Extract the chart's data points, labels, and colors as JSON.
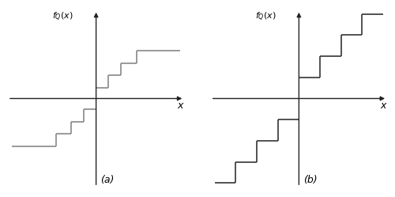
{
  "fig_width": 5.0,
  "fig_height": 2.49,
  "dpi": 100,
  "background_color": "#ffffff",
  "line_color_a": "#888888",
  "line_color_b": "#333333",
  "axis_color": "#222222",
  "label_color": "#000000",
  "subplot_a": {
    "xlim": [
      -2.3,
      2.3
    ],
    "ylim": [
      -2.3,
      2.3
    ],
    "label": "(a)",
    "pos_segs_x": [
      [
        0.0,
        0.32
      ],
      [
        0.32,
        0.32
      ],
      [
        0.32,
        0.65
      ],
      [
        0.65,
        0.65
      ],
      [
        0.65,
        1.05
      ],
      [
        1.05,
        1.05
      ],
      [
        1.05,
        2.2
      ]
    ],
    "pos_segs_y": [
      [
        0.28,
        0.28
      ],
      [
        0.28,
        0.6
      ],
      [
        0.6,
        0.6
      ],
      [
        0.6,
        0.92
      ],
      [
        0.92,
        0.92
      ],
      [
        0.92,
        1.24
      ],
      [
        1.24,
        1.24
      ]
    ]
  },
  "subplot_b": {
    "xlim": [
      -2.3,
      2.3
    ],
    "ylim": [
      -2.3,
      2.3
    ],
    "label": "(b)",
    "pos_segs_x": [
      [
        0.0,
        0.55
      ],
      [
        0.55,
        0.55
      ],
      [
        0.55,
        1.1
      ],
      [
        1.1,
        1.1
      ],
      [
        1.1,
        1.65
      ],
      [
        1.65,
        1.65
      ],
      [
        1.65,
        2.2
      ]
    ],
    "pos_segs_y": [
      [
        0.55,
        0.55
      ],
      [
        0.55,
        1.1
      ],
      [
        1.1,
        1.1
      ],
      [
        1.1,
        1.65
      ],
      [
        1.65,
        1.65
      ],
      [
        1.65,
        2.2
      ],
      [
        2.2,
        2.2
      ]
    ]
  }
}
